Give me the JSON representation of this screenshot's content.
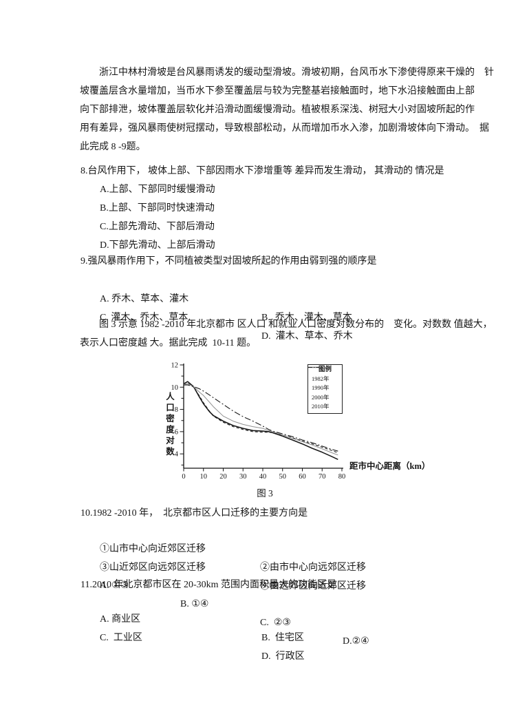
{
  "passage1": {
    "lines": [
      "　　浙江中林村滑坡是台风暴雨诱发的缓动型滑坡。滑坡初期，台风币水下渗使得原来干燥的　针",
      "坡覆盖层含水量增加，当币水下参至覆盖层与较为完整基岩接触面时，地下水沿接触面由上部",
      "向下部排泄，坡体覆盖层软化并沿滑动面缓慢滑动。植被根系深浅、树冠大小对固坡所起的作",
      "用有差异，强风暴雨使树冠摆动，导致根部松动，从而增加币水入渗，加剧滑坡体向下滑动。　据",
      "此完成 8 -9题。"
    ]
  },
  "q8": {
    "title": "8.台风作用下， 坡体上部、下部因雨水下渗增重等 差异而发生滑动， 其滑动的 情况是",
    "options": [
      "A.上部、下部同时缓慢滑动",
      "B.上部、下部同时快速滑动",
      "C.上部先滑动、下部后滑动",
      "D.下部先滑动、上部后滑动"
    ]
  },
  "q9": {
    "title": "9.强风暴雨作用下，不同植被类型对固坡所起的作用由弱到强的顺序是",
    "rows": [
      [
        "A. 乔木、草本、灌木",
        "B.  乔木、灌木、草本"
      ],
      [
        "C. 灌木、乔木、草本",
        "D.  灌木、草本、乔木"
      ]
    ]
  },
  "passage2": {
    "lines": [
      "　　图 3 示意 1982 -2010 年北京都市 区人口 和就业人口密度对数分布的　变化。对数数 值越大，",
      "表示人口密度越 大。据此完成  10-11 题。"
    ]
  },
  "figure": {
    "caption": "图 3"
  },
  "chart_data": {
    "type": "line",
    "title": "图 3",
    "xlabel": "距市中心距离（km）",
    "ylabel": "人口密度对数",
    "legend_title": "图例",
    "legend_position": "top-right",
    "xlim": [
      0,
      80
    ],
    "ylim": [
      2.75,
      12.2
    ],
    "xticks": [
      0,
      10,
      20,
      30,
      40,
      50,
      60,
      70,
      80
    ],
    "yticks_major": [
      4,
      6,
      8,
      10,
      12
    ],
    "yticks_minor": [
      3,
      5,
      7,
      9,
      11
    ],
    "grid": "off",
    "x": [
      0,
      2,
      5,
      8,
      10,
      13,
      15,
      20,
      25,
      30,
      35,
      40,
      43,
      45,
      50,
      55,
      60,
      65,
      70,
      75,
      78
    ],
    "series": [
      {
        "name": "1982年",
        "style": "solid",
        "color": "#1a1a1a",
        "width": 1.6,
        "dash": "",
        "legend_dash": "",
        "values": [
          10.3,
          10.5,
          10.05,
          9.1,
          8.5,
          7.8,
          7.45,
          6.95,
          6.55,
          6.3,
          6.1,
          6.05,
          6.0,
          5.9,
          5.6,
          5.25,
          4.9,
          4.5,
          4.15,
          3.75,
          3.5
        ]
      },
      {
        "name": "1990年",
        "style": "dashed",
        "color": "#1a1a1a",
        "width": 1.1,
        "dash": "4 3",
        "legend_dash": "3 2.5",
        "values": [
          10.2,
          10.35,
          10.0,
          9.2,
          8.6,
          7.85,
          7.4,
          6.85,
          6.45,
          6.2,
          6.0,
          5.95,
          5.95,
          5.9,
          5.7,
          5.45,
          5.15,
          4.9,
          4.6,
          4.3,
          4.1
        ]
      },
      {
        "name": "2000年",
        "style": "solid-thin",
        "color": "#8f8f8f",
        "width": 1.0,
        "dash": "",
        "legend_dash": "",
        "values": [
          10.25,
          10.3,
          10.05,
          9.55,
          9.25,
          8.65,
          8.25,
          7.4,
          6.95,
          6.65,
          6.45,
          6.3,
          6.1,
          6.0,
          5.7,
          5.4,
          5.1,
          4.8,
          4.45,
          4.1,
          3.9
        ]
      },
      {
        "name": "2010年",
        "style": "dash-dot",
        "color": "#1a1a1a",
        "width": 1.1,
        "dash": "9 3 2 3",
        "legend_dash": "6 2 1.5 2",
        "values": [
          10.2,
          10.2,
          10.05,
          9.85,
          9.65,
          9.3,
          9.05,
          8.45,
          7.85,
          7.35,
          6.95,
          6.5,
          6.2,
          6.05,
          5.8,
          5.55,
          5.25,
          5.0,
          4.7,
          4.4,
          4.25
        ]
      }
    ]
  },
  "q10": {
    "title": "10.1982 -2010 年，  北京都市区人口迁移的主要方向是",
    "rows": [
      [
        "①山市中心向近郊区迁移",
        "②由市中心向远郊区迁移"
      ],
      [
        "③山近郊区向远郊区迁移",
        "④由远郊区向近郊区迁移"
      ]
    ],
    "answers": [
      "A. ①③",
      "B. ①④",
      "C.  ②③",
      "D.②④"
    ]
  },
  "q11": {
    "title": "11.2010 年北京都市区在 20-30km 范围内面积最大的功能区是",
    "rows": [
      [
        "A. 商业区",
        "B.  住宅区"
      ],
      [
        "C.  工业区",
        "D.  行政区"
      ]
    ]
  }
}
